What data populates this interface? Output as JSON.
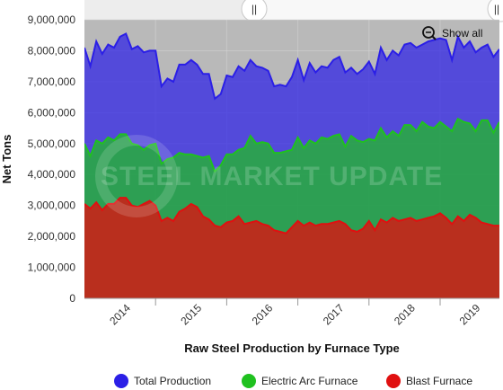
{
  "chart_data": {
    "type": "area",
    "title": "",
    "xlabel": "Raw Steel Production by Furnace Type",
    "ylabel": "Net Tons",
    "ylim": [
      0,
      9000000
    ],
    "yticks": [
      0,
      1000000,
      2000000,
      3000000,
      4000000,
      5000000,
      6000000,
      7000000,
      8000000,
      9000000
    ],
    "ytick_labels": [
      "0",
      "1,000,000",
      "2,000,000",
      "3,000,000",
      "4,000,000",
      "5,000,000",
      "6,000,000",
      "7,000,000",
      "8,000,000",
      "9,000,000"
    ],
    "xtick_labels": [
      "2014",
      "2015",
      "2016",
      "2017",
      "2018",
      "2019"
    ],
    "start": "2014-01",
    "grid": true,
    "legend_position": "bottom",
    "series": [
      {
        "name": "Total Production",
        "color": "#2b1fe6",
        "values": [
          8100000,
          7500000,
          8300000,
          7900000,
          8200000,
          8100000,
          8450000,
          8550000,
          8050000,
          8150000,
          7950000,
          8000000,
          8000000,
          6850000,
          7100000,
          7000000,
          7550000,
          7550000,
          7700000,
          7550000,
          7250000,
          7250000,
          6450000,
          6600000,
          7200000,
          7150000,
          7500000,
          7350000,
          7700000,
          7500000,
          7450000,
          7350000,
          6850000,
          6900000,
          6850000,
          7150000,
          7700000,
          7050000,
          7600000,
          7300000,
          7500000,
          7450000,
          7700000,
          7800000,
          7300000,
          7450000,
          7250000,
          7400000,
          7650000,
          7250000,
          8100000,
          7700000,
          8000000,
          7850000,
          8200000,
          8250000,
          8100000,
          8200000,
          8300000,
          8350000,
          8400000,
          8350000,
          7700000,
          8450000,
          8100000,
          8300000,
          7950000,
          8100000,
          8200000,
          7800000,
          8050000
        ]
      },
      {
        "name": "Electric Arc Furnace",
        "color": "#1fc11f",
        "values": [
          5000000,
          4600000,
          5100000,
          5000000,
          5200000,
          5100000,
          5300000,
          5300000,
          5000000,
          4950000,
          4800000,
          4950000,
          5000000,
          4350000,
          4500000,
          4550000,
          4700000,
          4650000,
          4650000,
          4600000,
          4550000,
          4600000,
          4100000,
          4300000,
          4650000,
          4650000,
          4800000,
          4850000,
          5250000,
          5000000,
          5050000,
          5000000,
          4700000,
          4700000,
          4750000,
          4800000,
          5200000,
          4850000,
          5100000,
          5000000,
          5200000,
          5150000,
          5250000,
          5300000,
          4900000,
          5250000,
          5100000,
          5050000,
          5150000,
          5100000,
          5500000,
          5200000,
          5400000,
          5250000,
          5600000,
          5600000,
          5400000,
          5700000,
          5550000,
          5500000,
          5700000,
          5550000,
          5400000,
          5800000,
          5700000,
          5650000,
          5400000,
          5750000,
          5750000,
          5350000,
          5700000
        ]
      },
      {
        "name": "Blast Furnace",
        "color": "#e01010",
        "values": [
          3050000,
          2900000,
          3100000,
          2850000,
          3050000,
          3050000,
          3250000,
          3250000,
          3000000,
          2950000,
          3050000,
          3150000,
          3000000,
          2500000,
          2600000,
          2500000,
          2800000,
          2900000,
          3050000,
          2950000,
          2650000,
          2550000,
          2350000,
          2300000,
          2450000,
          2500000,
          2650000,
          2400000,
          2450000,
          2500000,
          2400000,
          2350000,
          2200000,
          2150000,
          2100000,
          2300000,
          2500000,
          2350000,
          2450000,
          2350000,
          2400000,
          2400000,
          2450000,
          2500000,
          2400000,
          2200000,
          2150000,
          2250000,
          2500000,
          2200000,
          2550000,
          2450000,
          2600000,
          2500000,
          2550000,
          2600000,
          2500000,
          2550000,
          2600000,
          2650000,
          2750000,
          2600000,
          2400000,
          2650000,
          2500000,
          2700000,
          2600000,
          2450000,
          2400000,
          2350000,
          2350000
        ]
      }
    ]
  },
  "navigator": {
    "handle_glyph": "||"
  },
  "controls": {
    "show_all_label": "Show all"
  },
  "watermark": {
    "text": "STEEL MARKET UPDATE"
  }
}
